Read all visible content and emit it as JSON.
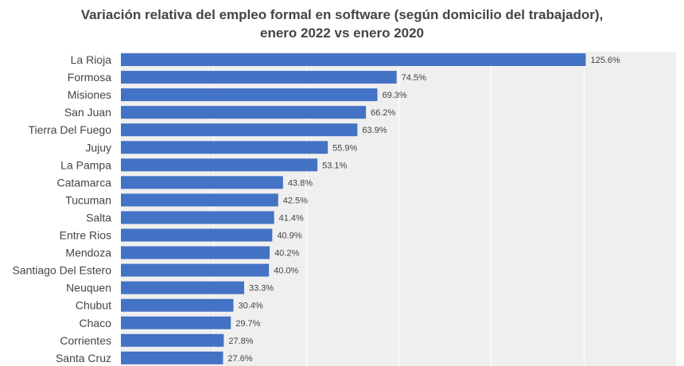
{
  "chart_data": {
    "type": "bar",
    "orientation": "horizontal",
    "title_lines": [
      "Variación relativa del empleo formal en software (según domicilio del trabajador),",
      "enero 2022 vs enero 2020"
    ],
    "xlabel": "",
    "ylabel": "",
    "grid": true,
    "legend": "none",
    "categories": [
      "La Rioja",
      "Formosa",
      "Misiones",
      "San Juan",
      "Tierra Del Fuego",
      "Jujuy",
      "La Pampa",
      "Catamarca",
      "Tucuman",
      "Salta",
      "Entre Rios",
      "Mendoza",
      "Santiago Del Estero",
      "Neuquen",
      "Chubut",
      "Chaco",
      "Corrientes",
      "Santa Cruz"
    ],
    "values": [
      125.6,
      74.5,
      69.3,
      66.2,
      63.9,
      55.9,
      53.1,
      43.8,
      42.5,
      41.4,
      40.9,
      40.2,
      40.0,
      33.3,
      30.4,
      29.7,
      27.8,
      27.6
    ],
    "value_labels": [
      "125.6%",
      "74.5%",
      "69.3%",
      "66.2%",
      "63.9%",
      "55.9%",
      "53.1%",
      "43.8%",
      "42.5%",
      "41.4%",
      "40.9%",
      "40.2%",
      "40.0%",
      "33.3%",
      "30.4%",
      "29.7%",
      "27.8%",
      "27.6%"
    ],
    "xlim": [
      0,
      150
    ],
    "grid_step": 25,
    "bar_color": "#4472c4",
    "plot_bg": "#efefef",
    "grid_color": "#ffffff",
    "label_color": "#444444"
  }
}
